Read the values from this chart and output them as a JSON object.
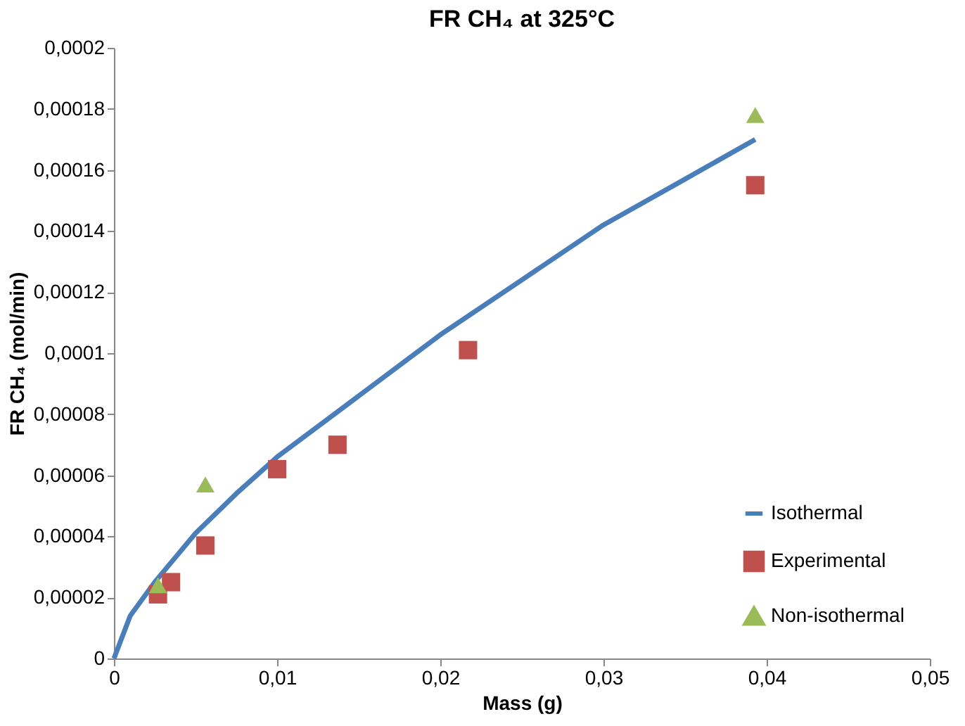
{
  "chart_data": {
    "type": "scatter",
    "title": "FR CH₄ at 325°C",
    "xlabel": "Mass (g)",
    "ylabel": "FR CH₄ (mol/min)",
    "xlim": [
      0,
      0.05
    ],
    "ylim": [
      0,
      0.0002
    ],
    "xticks": [
      0,
      {
        "value": 0.01,
        "label": "0,01"
      },
      {
        "value": 0.02,
        "label": "0,02"
      },
      {
        "value": 0.03,
        "label": "0,03"
      },
      {
        "value": 0.04,
        "label": "0,04"
      },
      {
        "value": 0.05,
        "label": "0,05"
      }
    ],
    "yticks": [
      0,
      {
        "value": 2e-05,
        "label": "0,00002"
      },
      {
        "value": 4e-05,
        "label": "0,00004"
      },
      {
        "value": 6e-05,
        "label": "0,00006"
      },
      {
        "value": 8e-05,
        "label": "0,00008"
      },
      {
        "value": 0.0001,
        "label": "0,0001"
      },
      {
        "value": 0.00012,
        "label": "0,00012"
      },
      {
        "value": 0.00014,
        "label": "0,00014"
      },
      {
        "value": 0.00016,
        "label": "0,00016"
      },
      {
        "value": 0.00018,
        "label": "0,00018"
      },
      {
        "value": 0.0002,
        "label": "0,0002"
      }
    ],
    "grid": false,
    "legend": "bottom right",
    "series": [
      {
        "name": "Isothermal",
        "type": "line",
        "color": "#4a7ebb",
        "marker": "none",
        "x": [
          0,
          0.001,
          0.0025,
          0.005,
          0.0075,
          0.01,
          0.015,
          0.02,
          0.025,
          0.03,
          0.035,
          0.0393
        ],
        "values": [
          0,
          1.4e-05,
          2.5e-05,
          4.1e-05,
          5.4e-05,
          6.6e-05,
          8.6e-05,
          0.000106,
          0.000124,
          0.000142,
          0.000157,
          0.00017
        ]
      },
      {
        "name": "Experimental",
        "color": "#c0504d",
        "marker": "square",
        "x": [
          0.0027,
          0.0035,
          0.0056,
          0.01,
          0.0137,
          0.0217,
          0.0393
        ],
        "values": [
          2.1e-05,
          2.5e-05,
          3.7e-05,
          6.2e-05,
          7e-05,
          0.000101,
          0.000155
        ]
      },
      {
        "name": "Non-isothermal",
        "color": "#9bbb59",
        "marker": "triangle",
        "x": [
          0.0027,
          0.0056,
          0.0393
        ],
        "values": [
          2.4e-05,
          5.7e-05,
          0.000178
        ]
      }
    ]
  }
}
